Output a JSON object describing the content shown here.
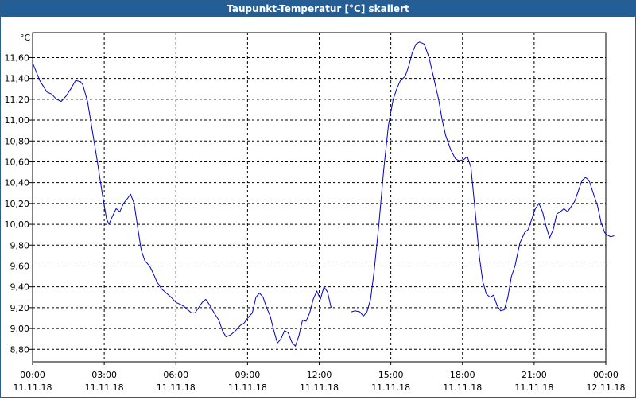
{
  "window": {
    "title": "Taupunkt-Temperatur [°C] skaliert"
  },
  "chart_data": {
    "type": "line",
    "title": "Taupunkt-Temperatur [°C] skaliert",
    "ylabel": "°C",
    "xlabel": "",
    "grid": true,
    "line_color": "#0000c8",
    "ylim": [
      8.68,
      11.84
    ],
    "yticks": [
      "8,80",
      "9,00",
      "9,20",
      "9,40",
      "9,60",
      "9,80",
      "10,00",
      "10,20",
      "10,40",
      "10,60",
      "10,80",
      "11,00",
      "11,20",
      "11,40",
      "11,60"
    ],
    "ytick_values": [
      8.8,
      9.0,
      9.2,
      9.4,
      9.6,
      9.8,
      10.0,
      10.2,
      10.4,
      10.6,
      10.8,
      11.0,
      11.2,
      11.4,
      11.6
    ],
    "xlim": [
      0,
      24
    ],
    "xticks": [
      {
        "time": "00:00",
        "date": "11.11.18"
      },
      {
        "time": "03:00",
        "date": "11.11.18"
      },
      {
        "time": "06:00",
        "date": "11.11.18"
      },
      {
        "time": "09:00",
        "date": "11.11.18"
      },
      {
        "time": "12:00",
        "date": "11.11.18"
      },
      {
        "time": "15:00",
        "date": "11.11.18"
      },
      {
        "time": "18:00",
        "date": "11.11.18"
      },
      {
        "time": "21:00",
        "date": "11.11.18"
      },
      {
        "time": "00:00",
        "date": "12.11.18"
      }
    ],
    "series": [
      {
        "segments": [
          [
            [
              0.0,
              11.55
            ],
            [
              0.3,
              11.38
            ],
            [
              0.6,
              11.27
            ],
            [
              0.8,
              11.25
            ],
            [
              1.0,
              11.2
            ],
            [
              1.2,
              11.18
            ],
            [
              1.4,
              11.23
            ],
            [
              1.6,
              11.3
            ],
            [
              1.8,
              11.38
            ],
            [
              2.0,
              11.37
            ],
            [
              2.1,
              11.34
            ],
            [
              2.3,
              11.18
            ],
            [
              2.5,
              10.9
            ],
            [
              2.7,
              10.62
            ],
            [
              2.9,
              10.32
            ],
            [
              3.0,
              10.18
            ],
            [
              3.1,
              10.05
            ],
            [
              3.2,
              10.0
            ],
            [
              3.35,
              10.08
            ],
            [
              3.5,
              10.15
            ],
            [
              3.65,
              10.12
            ],
            [
              3.8,
              10.2
            ],
            [
              3.95,
              10.24
            ],
            [
              4.1,
              10.29
            ],
            [
              4.25,
              10.2
            ],
            [
              4.4,
              9.97
            ],
            [
              4.55,
              9.75
            ],
            [
              4.7,
              9.65
            ],
            [
              4.9,
              9.6
            ],
            [
              5.05,
              9.53
            ],
            [
              5.2,
              9.45
            ],
            [
              5.4,
              9.38
            ],
            [
              5.6,
              9.34
            ],
            [
              5.8,
              9.3
            ],
            [
              6.0,
              9.25
            ],
            [
              6.2,
              9.23
            ],
            [
              6.35,
              9.21
            ],
            [
              6.5,
              9.18
            ],
            [
              6.65,
              9.15
            ],
            [
              6.8,
              9.15
            ],
            [
              6.95,
              9.2
            ],
            [
              7.1,
              9.25
            ],
            [
              7.25,
              9.28
            ],
            [
              7.4,
              9.23
            ],
            [
              7.6,
              9.15
            ],
            [
              7.8,
              9.08
            ],
            [
              7.95,
              8.98
            ],
            [
              8.1,
              8.92
            ],
            [
              8.3,
              8.94
            ],
            [
              8.5,
              8.98
            ],
            [
              8.7,
              9.03
            ],
            [
              8.85,
              9.05
            ],
            [
              9.0,
              9.1
            ],
            [
              9.2,
              9.15
            ],
            [
              9.35,
              9.3
            ],
            [
              9.5,
              9.34
            ],
            [
              9.65,
              9.3
            ],
            [
              9.8,
              9.2
            ],
            [
              9.95,
              9.12
            ],
            [
              10.1,
              8.98
            ],
            [
              10.25,
              8.86
            ],
            [
              10.4,
              8.9
            ],
            [
              10.55,
              8.98
            ],
            [
              10.7,
              8.96
            ],
            [
              10.85,
              8.87
            ],
            [
              11.0,
              8.83
            ],
            [
              11.15,
              8.93
            ],
            [
              11.3,
              9.08
            ],
            [
              11.45,
              9.07
            ],
            [
              11.6,
              9.15
            ],
            [
              11.75,
              9.28
            ],
            [
              11.9,
              9.36
            ],
            [
              12.05,
              9.28
            ],
            [
              12.2,
              9.4
            ],
            [
              12.35,
              9.35
            ],
            [
              12.5,
              9.2
            ]
          ],
          [
            [
              13.35,
              9.16
            ],
            [
              13.5,
              9.17
            ],
            [
              13.7,
              9.16
            ],
            [
              13.85,
              9.12
            ],
            [
              14.0,
              9.16
            ],
            [
              14.15,
              9.28
            ],
            [
              14.3,
              9.55
            ],
            [
              14.5,
              10.0
            ],
            [
              14.7,
              10.52
            ],
            [
              14.9,
              10.95
            ],
            [
              15.1,
              11.2
            ],
            [
              15.25,
              11.3
            ],
            [
              15.4,
              11.38
            ],
            [
              15.6,
              11.42
            ],
            [
              15.75,
              11.52
            ],
            [
              15.9,
              11.65
            ],
            [
              16.05,
              11.73
            ],
            [
              16.2,
              11.75
            ],
            [
              16.4,
              11.73
            ],
            [
              16.6,
              11.6
            ],
            [
              16.8,
              11.4
            ],
            [
              17.0,
              11.2
            ],
            [
              17.15,
              11.0
            ],
            [
              17.3,
              10.85
            ],
            [
              17.5,
              10.72
            ],
            [
              17.7,
              10.63
            ],
            [
              17.85,
              10.61
            ],
            [
              18.05,
              10.62
            ],
            [
              18.2,
              10.65
            ],
            [
              18.35,
              10.55
            ],
            [
              18.5,
              10.2
            ],
            [
              18.7,
              9.7
            ],
            [
              18.85,
              9.45
            ],
            [
              19.0,
              9.33
            ],
            [
              19.15,
              9.3
            ],
            [
              19.3,
              9.32
            ],
            [
              19.45,
              9.22
            ],
            [
              19.6,
              9.17
            ],
            [
              19.75,
              9.18
            ],
            [
              19.9,
              9.3
            ],
            [
              20.05,
              9.5
            ],
            [
              20.2,
              9.6
            ],
            [
              20.4,
              9.82
            ],
            [
              20.6,
              9.92
            ],
            [
              20.75,
              9.95
            ],
            [
              20.9,
              10.05
            ],
            [
              21.05,
              10.15
            ],
            [
              21.2,
              10.2
            ],
            [
              21.35,
              10.12
            ],
            [
              21.5,
              9.98
            ],
            [
              21.65,
              9.87
            ],
            [
              21.8,
              9.95
            ],
            [
              21.95,
              10.1
            ],
            [
              22.1,
              10.12
            ],
            [
              22.25,
              10.15
            ],
            [
              22.4,
              10.12
            ],
            [
              22.55,
              10.17
            ],
            [
              22.7,
              10.22
            ],
            [
              22.85,
              10.32
            ],
            [
              23.0,
              10.42
            ],
            [
              23.15,
              10.45
            ],
            [
              23.3,
              10.42
            ],
            [
              23.5,
              10.28
            ],
            [
              23.65,
              10.18
            ],
            [
              23.8,
              10.02
            ],
            [
              23.95,
              9.92
            ],
            [
              24.05,
              9.9
            ],
            [
              24.2,
              9.88
            ],
            [
              24.35,
              9.89
            ]
          ]
        ]
      }
    ]
  }
}
